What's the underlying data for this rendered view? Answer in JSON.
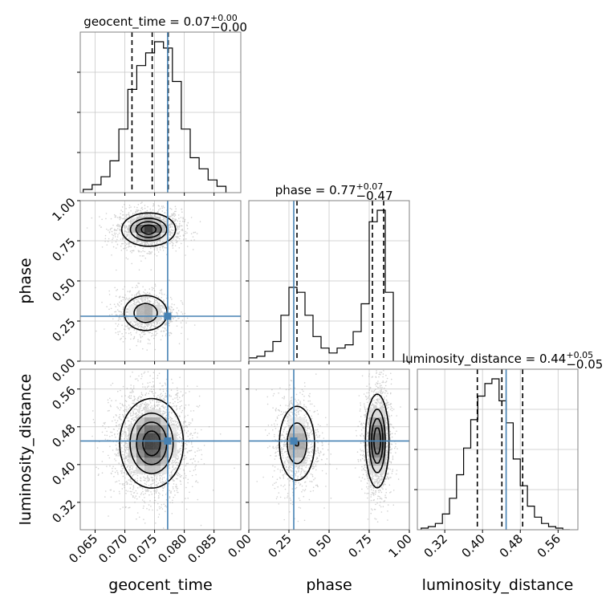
{
  "chart_data": {
    "type": "corner",
    "parameters": [
      "geocent_time",
      "phase",
      "luminosity_distance"
    ],
    "truth_color": "#4682b4",
    "truths": {
      "geocent_time": 0.0772,
      "phase": 0.28,
      "luminosity_distance": 0.45
    },
    "grid": true,
    "diagonal": [
      {
        "param": "geocent_time",
        "title_main": "geocent_time = 0.07",
        "title_sup": "+0.00",
        "title_sub": "−0.00",
        "xlim": [
          0.0625,
          0.0895
        ],
        "quantiles": [
          0.0712,
          0.0746,
          0.0773
        ],
        "truth": 0.0772,
        "bin_edges": [
          0.063,
          0.0645,
          0.066,
          0.0675,
          0.069,
          0.0705,
          0.072,
          0.0735,
          0.075,
          0.0765,
          0.078,
          0.0795,
          0.081,
          0.0825,
          0.084,
          0.0855,
          0.087
        ],
        "counts": [
          0.02,
          0.05,
          0.1,
          0.2,
          0.4,
          0.65,
          0.8,
          0.88,
          0.95,
          0.91,
          0.7,
          0.4,
          0.22,
          0.15,
          0.08,
          0.04
        ],
        "ticks": []
      },
      {
        "param": "phase",
        "title_main": "phase = 0.77",
        "title_sup": "+0.07",
        "title_sub": "−0.47",
        "xlim": [
          0.0,
          1.0
        ],
        "quantiles": [
          0.3,
          0.77,
          0.84
        ],
        "truth": 0.28,
        "bin_edges": [
          0.0,
          0.05,
          0.1,
          0.15,
          0.2,
          0.25,
          0.3,
          0.35,
          0.4,
          0.45,
          0.5,
          0.55,
          0.6,
          0.65,
          0.7,
          0.75,
          0.8,
          0.85,
          0.9
        ],
        "counts": [
          0.02,
          0.03,
          0.06,
          0.12,
          0.28,
          0.45,
          0.42,
          0.28,
          0.15,
          0.08,
          0.05,
          0.08,
          0.1,
          0.18,
          0.35,
          0.85,
          0.92,
          0.42
        ],
        "ticks": []
      },
      {
        "param": "luminosity_distance",
        "title_main": "luminosity_distance = 0.44",
        "title_sup": "+0.05",
        "title_sub": "−0.05",
        "xlim": [
          0.262,
          0.602
        ],
        "quantiles": [
          0.389,
          0.441,
          0.485
        ],
        "truth": 0.45,
        "bin_edges": [
          0.27,
          0.285,
          0.3,
          0.315,
          0.33,
          0.345,
          0.36,
          0.375,
          0.39,
          0.405,
          0.42,
          0.435,
          0.45,
          0.465,
          0.48,
          0.495,
          0.51,
          0.525,
          0.54,
          0.555,
          0.57,
          0.585
        ],
        "counts": [
          0.01,
          0.02,
          0.04,
          0.1,
          0.2,
          0.35,
          0.52,
          0.7,
          0.85,
          0.93,
          0.96,
          0.82,
          0.68,
          0.45,
          0.28,
          0.15,
          0.08,
          0.04,
          0.02,
          0.01,
          0.0
        ],
        "ticks": []
      }
    ],
    "off_diagonal": [
      {
        "x": "geocent_time",
        "y": "phase",
        "ylim": [
          0.0,
          1.0
        ],
        "blobs": [
          {
            "cx": 0.074,
            "cy": 0.82,
            "sx": 0.0022,
            "sy": 0.05,
            "weight": 0.62
          },
          {
            "cx": 0.0735,
            "cy": 0.3,
            "sx": 0.002,
            "sy": 0.06,
            "weight": 0.38
          }
        ]
      },
      {
        "x": "geocent_time",
        "y": "luminosity_distance",
        "ylim": [
          0.262,
          0.602
        ],
        "blobs": [
          {
            "cx": 0.0745,
            "cy": 0.445,
            "sx": 0.0026,
            "sy": 0.046,
            "weight": 1.0
          }
        ]
      },
      {
        "x": "phase",
        "y": "luminosity_distance",
        "ylim": [
          0.262,
          0.602
        ],
        "blobs": [
          {
            "cx": 0.8,
            "cy": 0.45,
            "sx": 0.035,
            "sy": 0.048,
            "weight": 0.62
          },
          {
            "cx": 0.3,
            "cy": 0.445,
            "sx": 0.06,
            "sy": 0.043,
            "weight": 0.38
          }
        ]
      }
    ],
    "x_tick_labels": {
      "geocent_time": [
        "0.065",
        "0.070",
        "0.075",
        "0.080",
        "0.085"
      ],
      "phase": [
        "0.00",
        "0.25",
        "0.50",
        "0.75",
        "1.00"
      ],
      "luminosity_distance": [
        "0.32",
        "0.40",
        "0.48",
        "0.56"
      ]
    },
    "y_tick_labels": {
      "phase": [
        "0.00",
        "0.25",
        "0.50",
        "0.75",
        "1.00"
      ],
      "luminosity_distance": [
        "0.32",
        "0.40",
        "0.48",
        "0.56"
      ]
    },
    "axis_labels": {
      "geocent_time": "geocent_time",
      "phase": "phase",
      "luminosity_distance": "luminosity_distance"
    }
  }
}
